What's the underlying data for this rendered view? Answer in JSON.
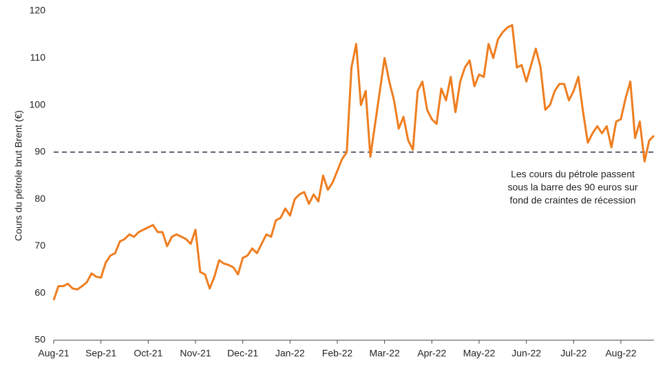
{
  "chart_data": {
    "type": "line",
    "y_label": "Cours du pétrole brut Brent (€)",
    "categories": [
      "Aug-21",
      null,
      null,
      null,
      null,
      null,
      null,
      null,
      null,
      null,
      "Sep-21",
      null,
      null,
      null,
      null,
      null,
      null,
      null,
      null,
      null,
      "Oct-21",
      null,
      null,
      null,
      null,
      null,
      null,
      null,
      null,
      null,
      "Nov-21",
      null,
      null,
      null,
      null,
      null,
      null,
      null,
      null,
      null,
      "Dec-21",
      null,
      null,
      null,
      null,
      null,
      null,
      null,
      null,
      null,
      "Jan-22",
      null,
      null,
      null,
      null,
      null,
      null,
      null,
      null,
      null,
      "Feb-22",
      null,
      null,
      null,
      null,
      null,
      null,
      null,
      null,
      null,
      "Mar-22",
      null,
      null,
      null,
      null,
      null,
      null,
      null,
      null,
      null,
      "Apr-22",
      null,
      null,
      null,
      null,
      null,
      null,
      null,
      null,
      null,
      "May-22",
      null,
      null,
      null,
      null,
      null,
      null,
      null,
      null,
      null,
      "Jun-22",
      null,
      null,
      null,
      null,
      null,
      null,
      null,
      null,
      null,
      "Jul-22",
      null,
      null,
      null,
      null,
      null,
      null,
      null,
      null,
      null,
      "Aug-22",
      null,
      null,
      null,
      null,
      null,
      null,
      null
    ],
    "values": [
      58.5,
      61.5,
      61.5,
      62,
      61,
      60.8,
      61.5,
      62.3,
      64.2,
      63.5,
      63.3,
      66.5,
      68,
      68.5,
      71,
      71.5,
      72.5,
      72,
      73,
      73.5,
      74,
      74.5,
      73,
      73,
      70,
      72,
      72.5,
      72,
      71.5,
      70.5,
      73.5,
      64.5,
      64,
      61,
      63.5,
      67,
      66.3,
      66,
      65.5,
      64,
      67.5,
      68,
      69.5,
      68.5,
      70.5,
      72.5,
      72,
      75.5,
      76,
      78,
      76.5,
      80,
      81,
      81.5,
      79,
      81,
      79.5,
      85,
      82,
      83.5,
      86,
      88.5,
      90,
      108,
      113,
      100,
      103,
      89,
      96,
      103,
      110,
      105,
      101,
      95,
      97.5,
      92.5,
      90.5,
      103,
      105,
      99,
      97,
      96,
      103.5,
      101,
      106,
      98.5,
      105,
      108,
      109.5,
      104,
      106.5,
      106,
      113,
      110,
      114,
      115.5,
      116.5,
      117,
      108,
      108.5,
      105,
      108.5,
      112,
      108,
      99,
      100,
      103,
      104.5,
      104.5,
      101,
      103,
      106,
      98.5,
      92,
      94,
      95.5,
      94,
      95.5,
      91,
      96.5,
      97,
      101.5,
      105,
      93,
      96.5,
      88,
      92.5,
      93.5
    ],
    "color": "#ee7d1f",
    "ylim": [
      50,
      120
    ],
    "yticks": [
      50,
      60,
      70,
      80,
      90,
      100,
      110,
      120
    ],
    "reference_line": {
      "value": 90
    },
    "annotation": [
      "Les cours du pétrole passent",
      "sous la barre des 90 euros sur",
      "fond de craintes de récession"
    ]
  }
}
